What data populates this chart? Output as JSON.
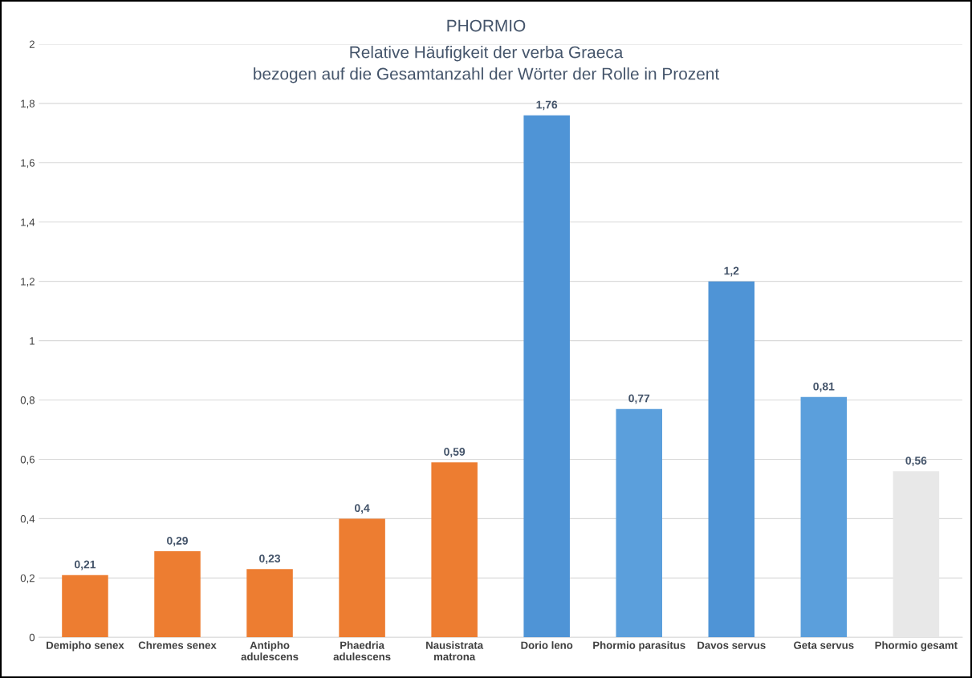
{
  "chart_data": {
    "type": "bar",
    "title": "PHORMIO",
    "subtitle": "Relative Häufigkeit der verba Graeca\nbezogen auf die Gesamtanzahl der Wörter der Rolle in Prozent",
    "categories": [
      "Demipho senex",
      "Chremes senex",
      "Antipho\nadulescens",
      "Phaedria\nadulescens",
      "Nausistrata\nmatrona",
      "Dorio leno",
      "Phormio parasitus",
      "Davos servus",
      "Geta servus",
      "Phormio gesamt"
    ],
    "values": [
      0.21,
      0.29,
      0.23,
      0.4,
      0.59,
      1.76,
      0.77,
      1.2,
      0.81,
      0.56
    ],
    "colors": [
      "#ed7d31",
      "#ed7d31",
      "#ed7d31",
      "#ed7d31",
      "#ed7d31",
      "#4f94d6",
      "#5b9fdc",
      "#4f94d6",
      "#5b9fdc",
      "#e8e8e8"
    ],
    "value_labels": [
      "0,21",
      "0,29",
      "0,23",
      "0,4",
      "0,59",
      "1,76",
      "0,77",
      "1,2",
      "0,81",
      "0,56"
    ],
    "ylim": [
      0,
      2
    ],
    "yticks": [
      0,
      {
        "value": 0.2,
        "label": "0,2"
      },
      {
        "value": 0.4,
        "label": "0,4"
      },
      {
        "value": 0.6,
        "label": "0,6"
      },
      {
        "value": 0.8,
        "label": "0,8"
      },
      1,
      {
        "value": 1.2,
        "label": "1,2"
      },
      {
        "value": 1.4,
        "label": "1,4"
      },
      {
        "value": 1.6,
        "label": "1,6"
      },
      {
        "value": 1.8,
        "label": "1,8"
      },
      2
    ],
    "grid": "y",
    "legend": false
  }
}
